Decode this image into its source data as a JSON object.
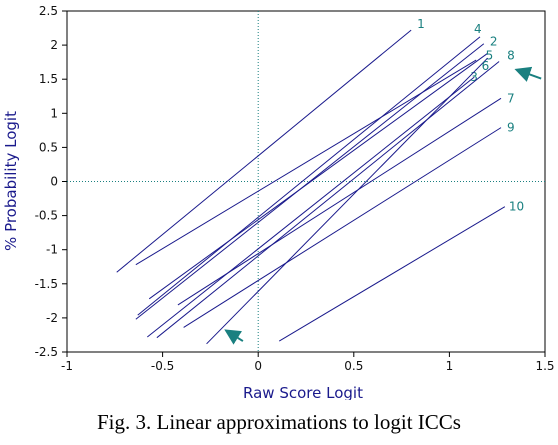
{
  "caption": "Fig. 3.  Linear approximations to logit ICCs",
  "colors": {
    "axis": "#000000",
    "lines": "#1a1a8c",
    "labels": "#1a8080",
    "reference": "#1a8080",
    "arrows": "#1a8080",
    "axis_title": "#1a1a8c"
  },
  "chart_data": {
    "type": "line",
    "title": "",
    "xlabel": "Raw Score Logit",
    "ylabel": "% Probability Logit",
    "xlim": [
      -1,
      1.5
    ],
    "ylim": [
      -2.5,
      2.5
    ],
    "xticks": [
      -1,
      -0.5,
      0,
      0.5,
      1,
      1.5
    ],
    "xtick_labels": [
      "-1",
      "-0.5",
      "0",
      "0.5",
      "1",
      "1.5"
    ],
    "yticks": [
      -2.5,
      -2,
      -1.5,
      -1,
      -0.5,
      0,
      0.5,
      1,
      1.5,
      2,
      2.5
    ],
    "ytick_labels": [
      "-2.5",
      "-2",
      "-1.5",
      "-1",
      "-0.5",
      "0",
      "0.5",
      "1",
      "1.5",
      "2",
      "2.5"
    ],
    "grid": false,
    "reference_lines": {
      "x": 0,
      "y": 0,
      "style": "dotted"
    },
    "series": [
      {
        "name": "1",
        "x": [
          -0.74,
          0.8
        ],
        "y": [
          -1.33,
          2.22
        ]
      },
      {
        "name": "2",
        "x": [
          -0.64,
          1.18
        ],
        "y": [
          -2.02,
          2.02
        ]
      },
      {
        "name": "3",
        "x": [
          -0.58,
          1.13
        ],
        "y": [
          -2.28,
          1.53
        ]
      },
      {
        "name": "4",
        "x": [
          -0.63,
          1.16
        ],
        "y": [
          -1.96,
          2.12
        ]
      },
      {
        "name": "5",
        "x": [
          -0.57,
          1.2
        ],
        "y": [
          -1.72,
          1.88
        ]
      },
      {
        "name": "6",
        "x": [
          -0.27,
          1.2
        ],
        "y": [
          -2.38,
          1.81
        ]
      },
      {
        "name": "7",
        "x": [
          -0.42,
          1.27
        ],
        "y": [
          -1.81,
          1.22
        ]
      },
      {
        "name": "8",
        "x": [
          -0.53,
          1.26
        ],
        "y": [
          -2.29,
          1.76
        ]
      },
      {
        "name": "9",
        "x": [
          -0.39,
          1.27
        ],
        "y": [
          -2.14,
          0.79
        ]
      },
      {
        "name": "10",
        "x": [
          0.11,
          1.29
        ],
        "y": [
          -2.34,
          -0.37
        ]
      },
      {
        "name": "",
        "x": [
          -0.64,
          1.14
        ],
        "y": [
          -1.22,
          1.78
        ]
      }
    ],
    "annotations": [
      {
        "type": "arrow",
        "from": [
          1.48,
          1.51
        ],
        "to": [
          1.36,
          1.63
        ]
      },
      {
        "type": "arrow",
        "from": [
          -0.08,
          -2.34
        ],
        "to": [
          -0.16,
          -2.2
        ]
      }
    ]
  }
}
